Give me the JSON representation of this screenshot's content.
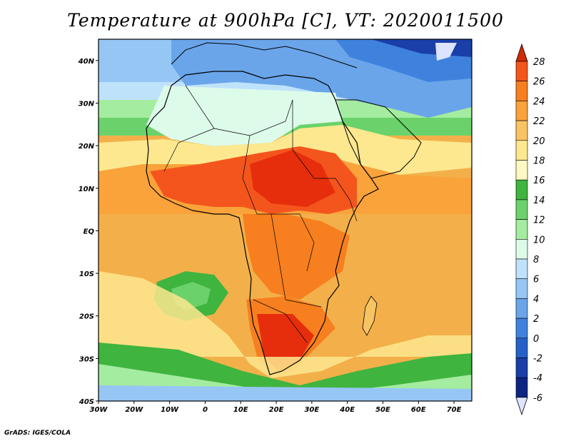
{
  "title": "Temperature at 900hPa [C], VT: 2020011500",
  "credit": "GrADS: IGES/COLA",
  "map": {
    "lon_range": [
      -30,
      75
    ],
    "lat_range": [
      -40,
      45
    ],
    "lon_ticks": [
      "30W",
      "20W",
      "10W",
      "0",
      "10E",
      "20E",
      "30E",
      "40E",
      "50E",
      "60E",
      "70E"
    ],
    "lat_ticks": [
      "40N",
      "30N",
      "20N",
      "10N",
      "EQ",
      "10S",
      "20S",
      "30S",
      "40S"
    ],
    "ocean_color": "#f3b04a",
    "land_hot_color": "#e8380f"
  },
  "colorbar": {
    "labels": [
      "28",
      "26",
      "24",
      "22",
      "20",
      "18",
      "16",
      "14",
      "12",
      "10",
      "8",
      "6",
      "4",
      "2",
      "0",
      "-2",
      "-4",
      "-6"
    ],
    "colors": [
      "#e62e0c",
      "#f4551d",
      "#f77f1f",
      "#f9a33a",
      "#f8c463",
      "#fde88f",
      "#fff8c2",
      "#3fb43f",
      "#6bd26b",
      "#a4ec9f",
      "#ddfbe9",
      "#bfe2fb",
      "#96c7f4",
      "#6aa5ea",
      "#3f82de",
      "#2660c9",
      "#1a3fa9",
      "#0d2480",
      "#dde4ff"
    ],
    "top_arrow_color": "#d22a06",
    "bottom_arrow_color": "#dde4ff"
  }
}
